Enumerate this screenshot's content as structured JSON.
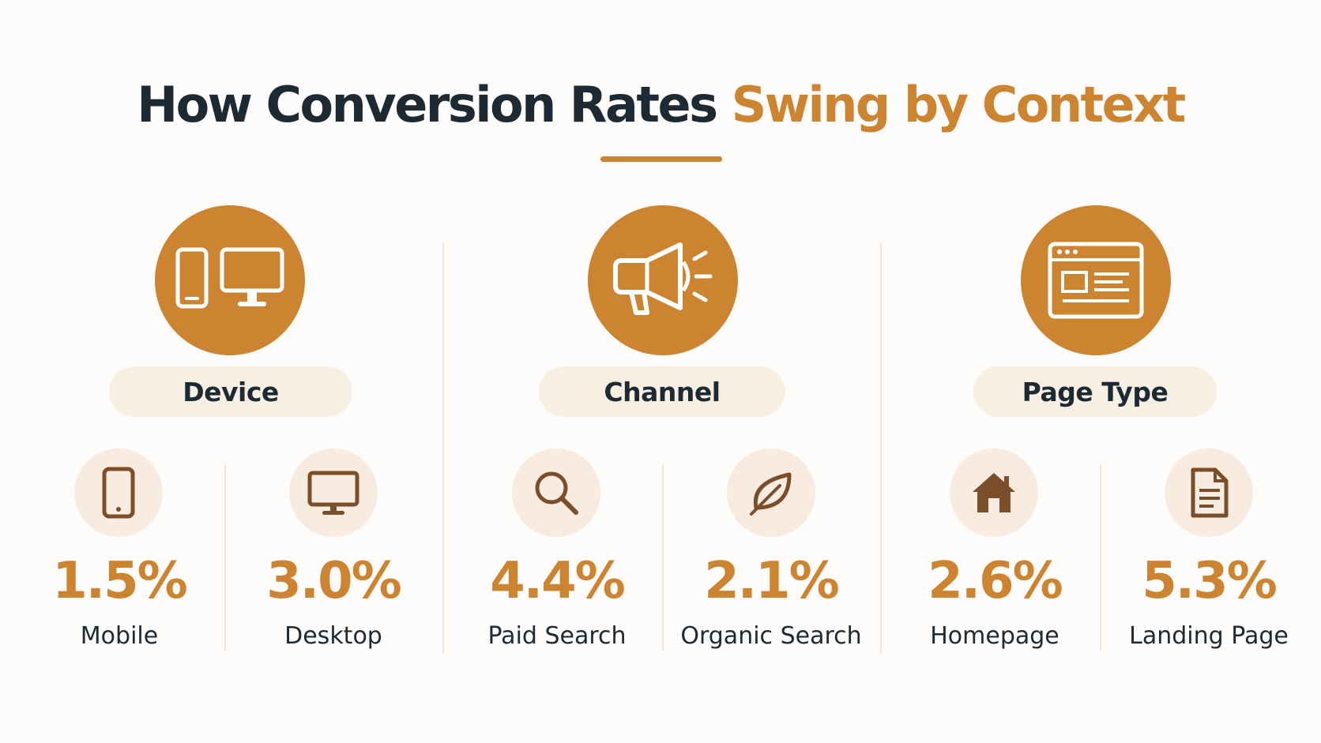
{
  "title": {
    "dark": "How Conversion Rates",
    "accent": "Swing by Context"
  },
  "colors": {
    "accent": "#cd8430",
    "dark_text": "#1d2a33",
    "pill_bg": "#f8efe3",
    "icon_bg": "#f8ece0",
    "icon_stroke": "#7a4e2a"
  },
  "groups": [
    {
      "name": "Device",
      "icon": "device-icon",
      "items": [
        {
          "value": "1.5%",
          "label": "Mobile",
          "icon": "smartphone-icon"
        },
        {
          "value": "3.0%",
          "label": "Desktop",
          "icon": "monitor-icon"
        }
      ]
    },
    {
      "name": "Channel",
      "icon": "megaphone-icon",
      "items": [
        {
          "value": "4.4%",
          "label": "Paid Search",
          "icon": "search-icon"
        },
        {
          "value": "2.1%",
          "label": "Organic Search",
          "icon": "leaf-icon"
        }
      ]
    },
    {
      "name": "Page Type",
      "icon": "browser-window-icon",
      "items": [
        {
          "value": "2.6%",
          "label": "Homepage",
          "icon": "home-icon"
        },
        {
          "value": "5.3%",
          "label": "Landing Page",
          "icon": "document-icon"
        }
      ]
    }
  ]
}
